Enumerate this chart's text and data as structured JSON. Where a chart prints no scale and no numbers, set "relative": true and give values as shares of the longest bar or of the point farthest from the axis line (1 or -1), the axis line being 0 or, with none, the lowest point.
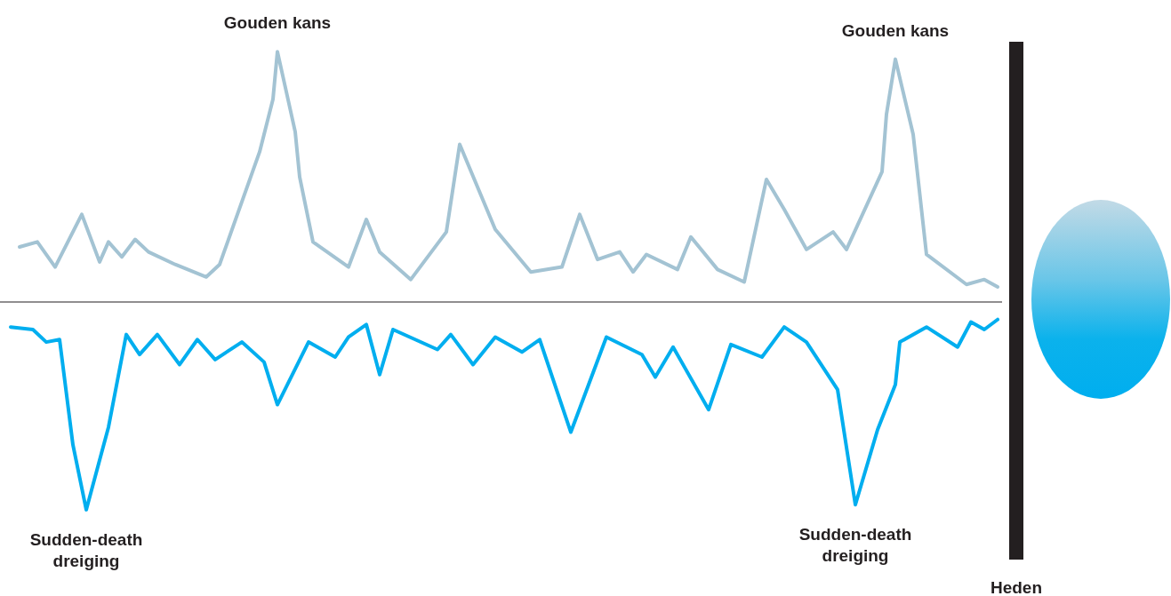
{
  "chart_data": {
    "type": "line",
    "relative": true,
    "legend": false,
    "grid": false,
    "marker": "none",
    "line_style": "solid",
    "categories": [
      null,
      null,
      null,
      null,
      null,
      null,
      null,
      null,
      null,
      null,
      null,
      null,
      null,
      null,
      null,
      null,
      null,
      null,
      null,
      null,
      null,
      null,
      null,
      null,
      null,
      null,
      null,
      null,
      null,
      null,
      null,
      null,
      null,
      null,
      null,
      null,
      null,
      null,
      null,
      null,
      null,
      null,
      null,
      null,
      null,
      null,
      null,
      null,
      null,
      null,
      null,
      null,
      null,
      null,
      null,
      null,
      null,
      null,
      null,
      null,
      null,
      null,
      null,
      null,
      null,
      null,
      null,
      null,
      null,
      null,
      null,
      null,
      null,
      null,
      null,
      null,
      null,
      null,
      null,
      null,
      null,
      null,
      null,
      null,
      null,
      null,
      null,
      null,
      null,
      null,
      null,
      null,
      null,
      null,
      null,
      null,
      null,
      null,
      null,
      null,
      null,
      null,
      null,
      null,
      null,
      null,
      null,
      null,
      null,
      null,
      null,
      null,
      null,
      null,
      null,
      null,
      null,
      null,
      null,
      null,
      null,
      null,
      null,
      null,
      null,
      null,
      null,
      null,
      null,
      null,
      null,
      null,
      null,
      null,
      null,
      null,
      null,
      null,
      null,
      null,
      null,
      null,
      null,
      null,
      null,
      null,
      null,
      null,
      null,
      null,
      null,
      null,
      null,
      null,
      null,
      null,
      null,
      null,
      null,
      null,
      null,
      null,
      null,
      null,
      null,
      null,
      null,
      null,
      null,
      null,
      null,
      null,
      null,
      null,
      null,
      null,
      null,
      null,
      null,
      null,
      null,
      null,
      null,
      null,
      null,
      null,
      null,
      null,
      null,
      null,
      null,
      null,
      null,
      null,
      null,
      null,
      null,
      null,
      null,
      null,
      null,
      null,
      null,
      null,
      null,
      null,
      null,
      null,
      null,
      null,
      null,
      null,
      null,
      null,
      null,
      null,
      null,
      null,
      null,
      null,
      null,
      null,
      null
    ],
    "series": [
      {
        "color": "#a3c3d3",
        "values": [
          null,
          null,
          0.22,
          null,
          null,
          null,
          0.24,
          null,
          null,
          null,
          0.14,
          null,
          null,
          null,
          null,
          null,
          0.35,
          null,
          null,
          null,
          0.16,
          null,
          0.24,
          null,
          null,
          0.18,
          null,
          null,
          0.25,
          null,
          null,
          0.2,
          null,
          null,
          null,
          null,
          null,
          0.15,
          null,
          null,
          null,
          null,
          null,
          null,
          0.1,
          null,
          null,
          0.15,
          null,
          null,
          null,
          null,
          null,
          null,
          null,
          null,
          0.6,
          null,
          null,
          0.81,
          1,
          null,
          null,
          null,
          0.68,
          0.5,
          null,
          null,
          0.24,
          null,
          null,
          null,
          null,
          null,
          null,
          null,
          0.14,
          null,
          null,
          null,
          0.33,
          null,
          null,
          0.2,
          null,
          null,
          null,
          null,
          null,
          null,
          0.09,
          null,
          null,
          null,
          null,
          null,
          null,
          null,
          0.28,
          null,
          null,
          0.63,
          null,
          null,
          null,
          null,
          null,
          null,
          null,
          0.29,
          null,
          null,
          null,
          null,
          null,
          null,
          null,
          0.12,
          null,
          null,
          null,
          null,
          null,
          null,
          0.14,
          null,
          null,
          null,
          0.35,
          null,
          null,
          null,
          0.17,
          null,
          null,
          null,
          null,
          0.2,
          null,
          null,
          0.12,
          null,
          null,
          0.19,
          null,
          null,
          null,
          null,
          null,
          null,
          0.13,
          null,
          null,
          0.26,
          null,
          null,
          null,
          null,
          null,
          0.13,
          null,
          null,
          null,
          null,
          null,
          0.08,
          null,
          null,
          null,
          null,
          0.49,
          null,
          null,
          null,
          0.37,
          null,
          null,
          null,
          null,
          0.21,
          null,
          null,
          null,
          null,
          null,
          0.28,
          null,
          null,
          0.21,
          null,
          null,
          null,
          null,
          null,
          null,
          null,
          0.52,
          0.75,
          null,
          0.97,
          null,
          null,
          null,
          0.67,
          null,
          null,
          0.19,
          null,
          null,
          null,
          null,
          null,
          null,
          null,
          null,
          0.07,
          null,
          null,
          null,
          0.09,
          null,
          null,
          0.06
        ]
      },
      {
        "color": "#00aeef",
        "values": [
          -0.1,
          null,
          null,
          null,
          null,
          -0.11,
          null,
          null,
          -0.16,
          null,
          null,
          -0.15,
          null,
          null,
          -0.57,
          null,
          null,
          -0.83,
          null,
          null,
          null,
          null,
          -0.5,
          null,
          null,
          null,
          -0.13,
          null,
          null,
          -0.21,
          null,
          null,
          null,
          -0.13,
          null,
          null,
          null,
          null,
          -0.25,
          null,
          null,
          null,
          -0.15,
          null,
          null,
          null,
          -0.23,
          null,
          null,
          null,
          null,
          null,
          -0.16,
          null,
          null,
          null,
          null,
          -0.24,
          null,
          null,
          -0.41,
          null,
          null,
          null,
          null,
          null,
          null,
          -0.16,
          null,
          null,
          null,
          null,
          null,
          -0.22,
          null,
          null,
          -0.14,
          null,
          null,
          null,
          -0.09,
          null,
          null,
          -0.29,
          null,
          null,
          -0.11,
          null,
          null,
          null,
          null,
          null,
          null,
          null,
          null,
          null,
          -0.19,
          null,
          null,
          -0.13,
          null,
          null,
          null,
          null,
          -0.25,
          null,
          null,
          null,
          null,
          -0.14,
          null,
          null,
          null,
          null,
          null,
          -0.2,
          null,
          null,
          null,
          -0.15,
          null,
          null,
          null,
          null,
          null,
          null,
          -0.52,
          null,
          null,
          null,
          null,
          null,
          null,
          null,
          -0.14,
          null,
          null,
          null,
          null,
          null,
          null,
          null,
          -0.21,
          null,
          null,
          -0.3,
          null,
          null,
          null,
          -0.18,
          null,
          null,
          null,
          null,
          null,
          null,
          null,
          -0.43,
          null,
          null,
          null,
          null,
          -0.17,
          null,
          null,
          null,
          null,
          null,
          null,
          -0.22,
          null,
          null,
          null,
          null,
          -0.1,
          null,
          null,
          null,
          null,
          -0.16,
          null,
          null,
          null,
          null,
          null,
          null,
          -0.35,
          null,
          null,
          null,
          -0.81,
          null,
          null,
          null,
          null,
          -0.51,
          null,
          null,
          null,
          -0.33,
          -0.16,
          null,
          null,
          null,
          null,
          null,
          -0.1,
          null,
          null,
          null,
          null,
          null,
          null,
          -0.18,
          null,
          null,
          -0.08,
          null,
          null,
          -0.11,
          null,
          null,
          -0.07
        ]
      }
    ],
    "ref_lines": [
      {
        "axis": "x",
        "label": "Heden",
        "color": "#231f20"
      }
    ],
    "annotations": [
      "Gouden kans",
      "Gouden kans",
      "Sudden-death dreiging",
      "Sudden-death dreiging"
    ]
  }
}
